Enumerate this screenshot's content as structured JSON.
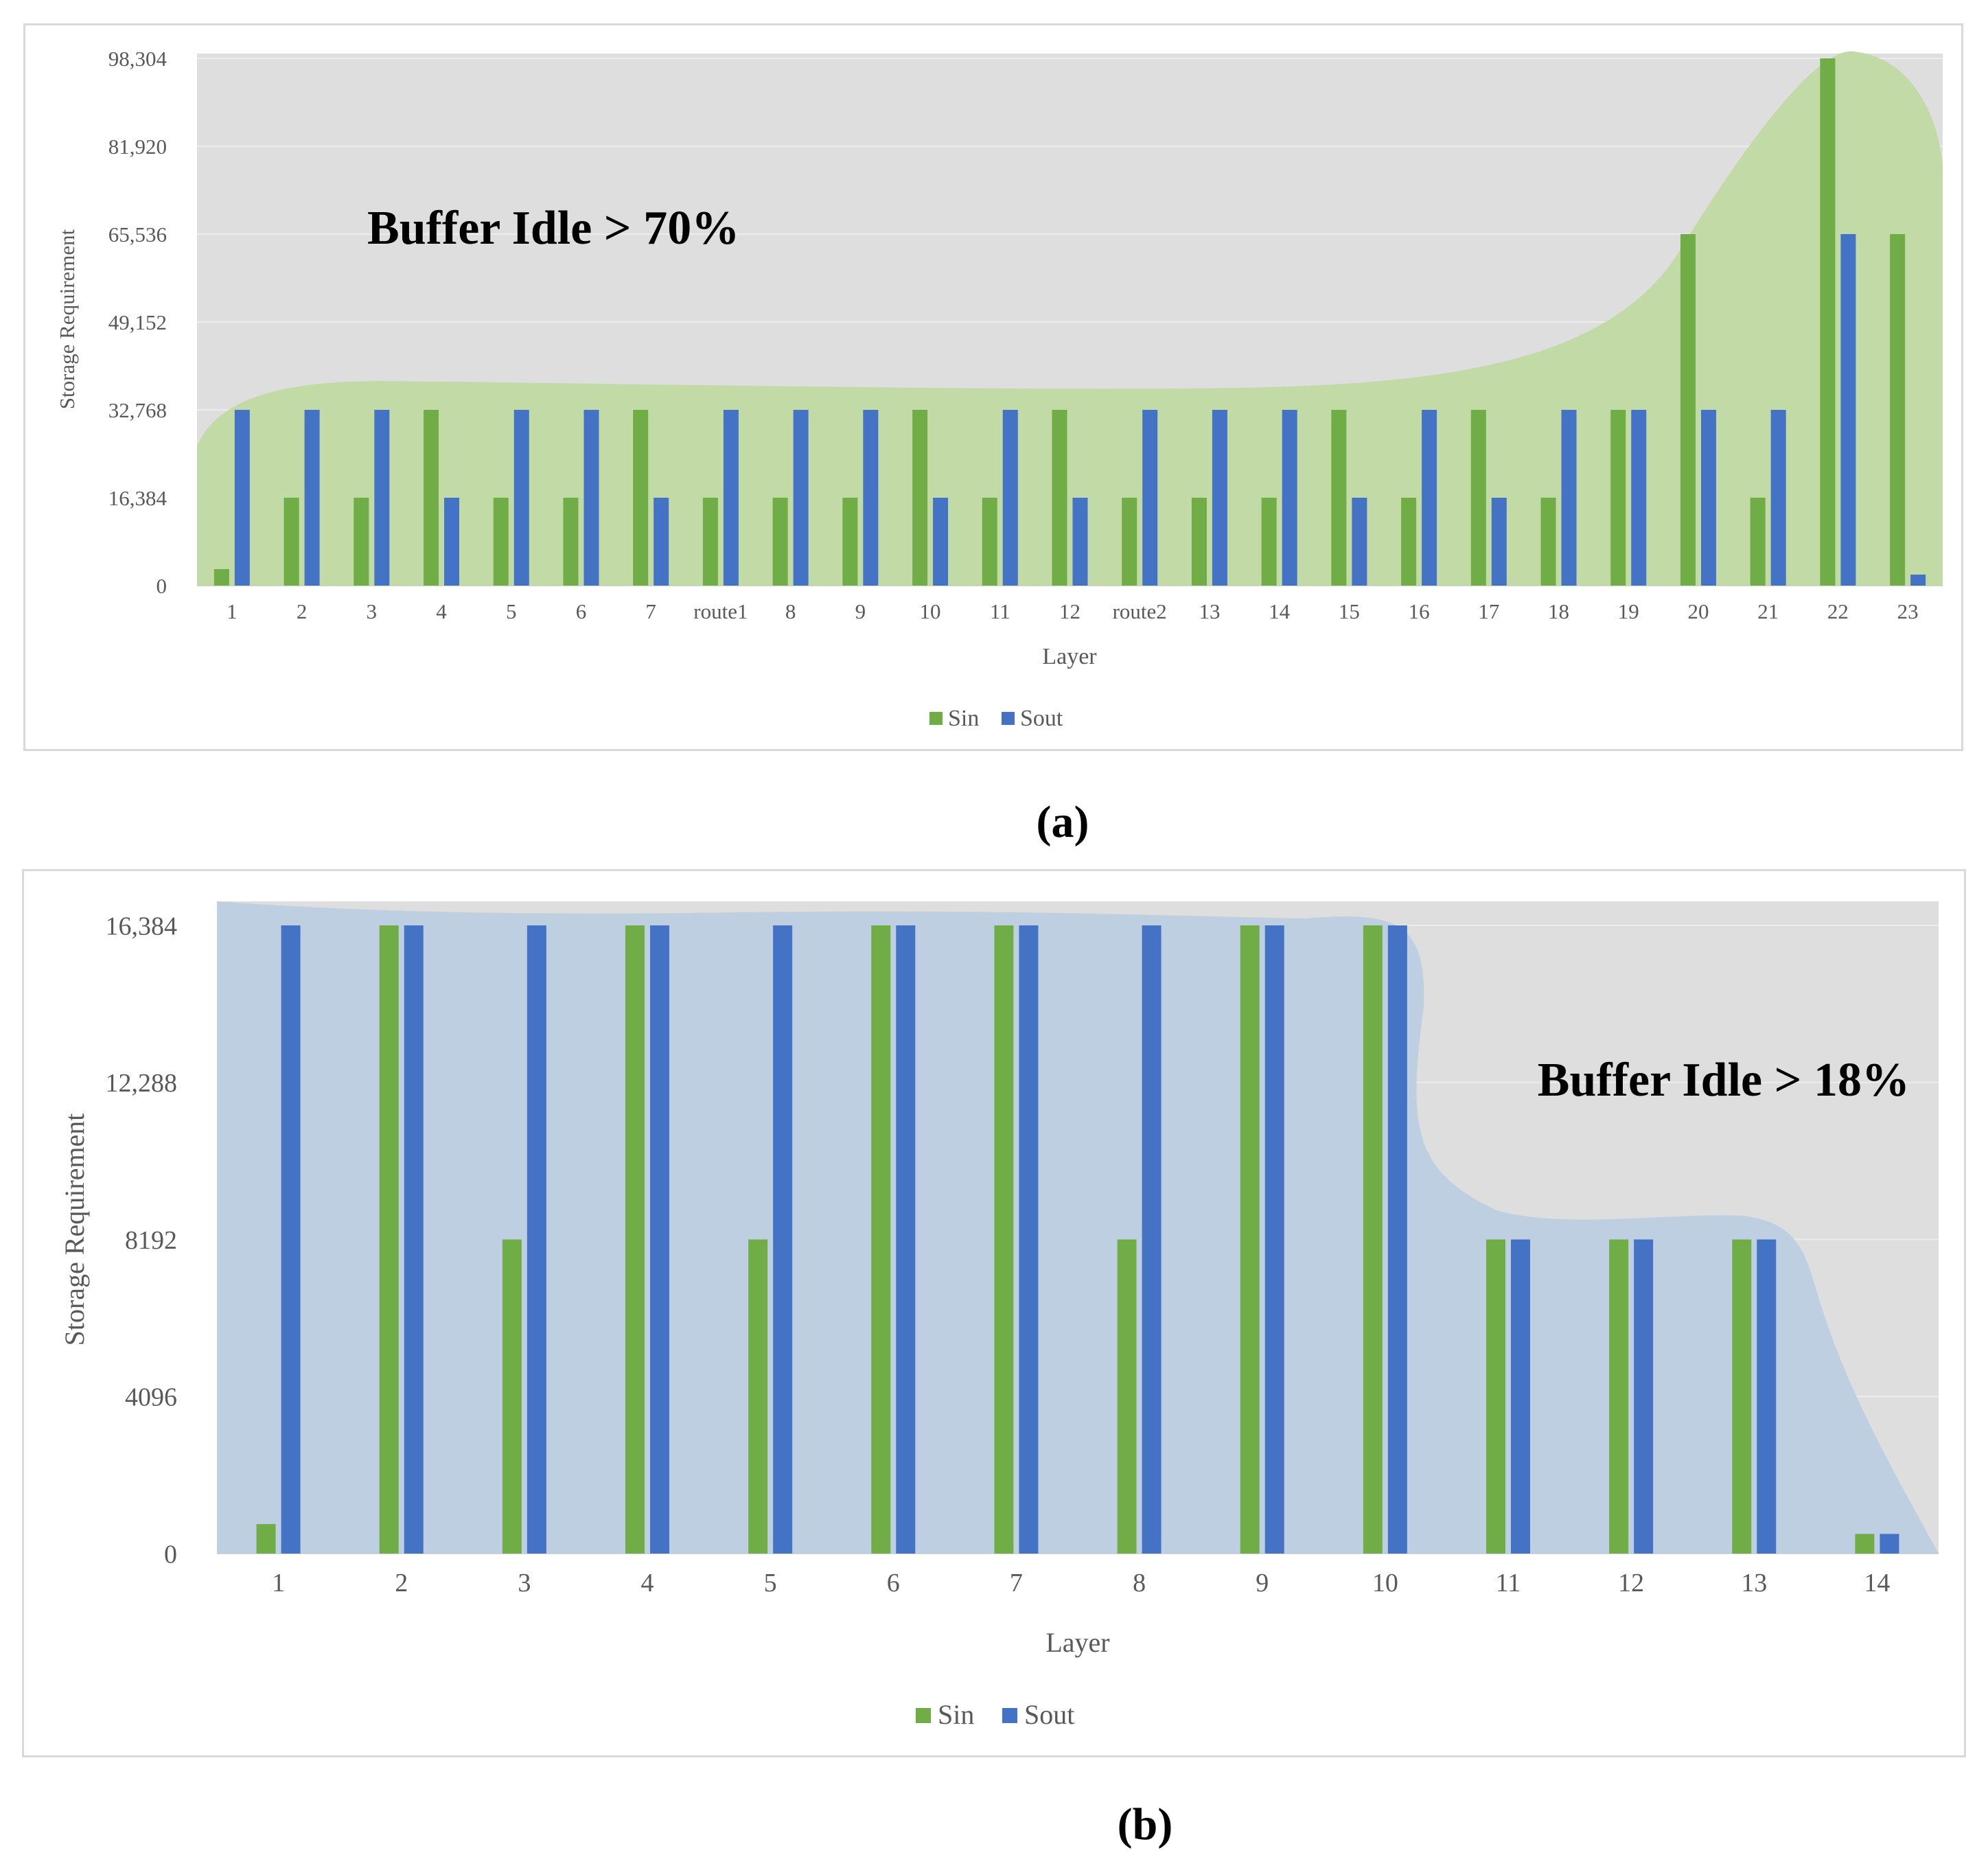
{
  "colors": {
    "sin": "#70ad47",
    "sout": "#4472c4",
    "plot_bg": "#dedede",
    "area_a": "#c2daa6",
    "area_b": "#bfcfe2",
    "grid": "#ececec",
    "axis_text": "#595959"
  },
  "chart_data": [
    {
      "type": "bar",
      "panel_label": "(a)",
      "xlabel": "Layer",
      "ylabel": "Storage Requirement",
      "annotation": "Buffer Idle > 70%",
      "ylim": [
        0,
        98304
      ],
      "yticks": [
        0,
        16384,
        32768,
        49152,
        65536,
        81920,
        98304
      ],
      "ytick_labels": [
        "0",
        "16,384",
        "32,768",
        "49,152",
        "65,536",
        "81,920",
        "98,304"
      ],
      "legend": [
        "Sin",
        "Sout"
      ],
      "categories": [
        "1",
        "2",
        "3",
        "4",
        "5",
        "6",
        "7",
        "route1",
        "8",
        "9",
        "10",
        "11",
        "12",
        "route2",
        "13",
        "14",
        "15",
        "16",
        "17",
        "18",
        "19",
        "20",
        "21",
        "22",
        "23"
      ],
      "series": [
        {
          "name": "Sin",
          "values": [
            3072,
            16384,
            16384,
            32768,
            16384,
            16384,
            32768,
            16384,
            16384,
            16384,
            32768,
            16384,
            32768,
            16384,
            16384,
            16384,
            32768,
            16384,
            32768,
            16384,
            32768,
            65536,
            16384,
            98304,
            65536
          ]
        },
        {
          "name": "Sout",
          "values": [
            32768,
            32768,
            32768,
            16384,
            32768,
            32768,
            16384,
            32768,
            32768,
            32768,
            16384,
            32768,
            16384,
            32768,
            32768,
            32768,
            16384,
            32768,
            16384,
            32768,
            32768,
            32768,
            32768,
            65536,
            2048
          ]
        }
      ]
    },
    {
      "type": "bar",
      "panel_label": "(b)",
      "xlabel": "Layer",
      "ylabel": "Storage Requirement",
      "annotation": "Buffer Idle > 18%",
      "ylim": [
        0,
        16384
      ],
      "yticks": [
        0,
        4096,
        8192,
        12288,
        16384
      ],
      "ytick_labels": [
        "0",
        "4096",
        "8192",
        "12,288",
        "16,384"
      ],
      "legend": [
        "Sin",
        "Sout"
      ],
      "categories": [
        "1",
        "2",
        "3",
        "4",
        "5",
        "6",
        "7",
        "8",
        "9",
        "10",
        "11",
        "12",
        "13",
        "14"
      ],
      "series": [
        {
          "name": "Sin",
          "values": [
            768,
            16384,
            8192,
            16384,
            8192,
            16384,
            16384,
            8192,
            16384,
            16384,
            8192,
            8192,
            8192,
            512
          ]
        },
        {
          "name": "Sout",
          "values": [
            16384,
            16384,
            16384,
            16384,
            16384,
            16384,
            16384,
            16384,
            16384,
            16384,
            8192,
            8192,
            8192,
            512
          ]
        }
      ]
    }
  ]
}
